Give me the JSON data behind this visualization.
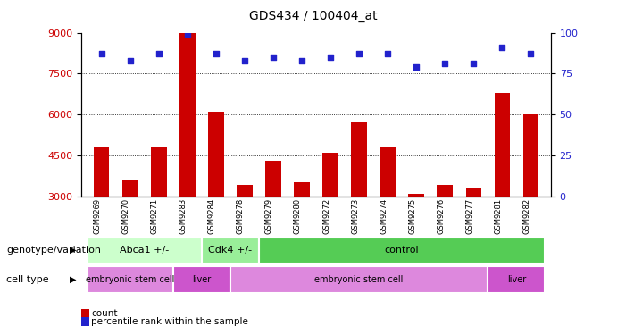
{
  "title": "GDS434 / 100404_at",
  "samples": [
    "GSM9269",
    "GSM9270",
    "GSM9271",
    "GSM9283",
    "GSM9284",
    "GSM9278",
    "GSM9279",
    "GSM9280",
    "GSM9272",
    "GSM9273",
    "GSM9274",
    "GSM9275",
    "GSM9276",
    "GSM9277",
    "GSM9281",
    "GSM9282"
  ],
  "counts": [
    4800,
    3600,
    4800,
    9000,
    6100,
    3400,
    4300,
    3500,
    4600,
    5700,
    4800,
    3100,
    3400,
    3300,
    6800,
    6000
  ],
  "percentile_ranks": [
    87,
    83,
    87,
    99,
    87,
    83,
    85,
    83,
    85,
    87,
    87,
    79,
    81,
    81,
    91,
    87
  ],
  "ylim_left": [
    3000,
    9000
  ],
  "ylim_right": [
    0,
    100
  ],
  "yticks_left": [
    3000,
    4500,
    6000,
    7500,
    9000
  ],
  "yticks_right": [
    0,
    25,
    50,
    75,
    100
  ],
  "bar_color": "#cc0000",
  "dot_color": "#2222cc",
  "genotype_groups": [
    {
      "label": "Abca1 +/-",
      "start": 0,
      "end": 4,
      "color": "#ccffcc"
    },
    {
      "label": "Cdk4 +/-",
      "start": 4,
      "end": 6,
      "color": "#99ee99"
    },
    {
      "label": "control",
      "start": 6,
      "end": 16,
      "color": "#55cc55"
    }
  ],
  "celltype_groups": [
    {
      "label": "embryonic stem cell",
      "start": 0,
      "end": 3,
      "color": "#dd88dd"
    },
    {
      "label": "liver",
      "start": 3,
      "end": 5,
      "color": "#cc55cc"
    },
    {
      "label": "embryonic stem cell",
      "start": 5,
      "end": 14,
      "color": "#dd88dd"
    },
    {
      "label": "liver",
      "start": 14,
      "end": 16,
      "color": "#cc55cc"
    }
  ],
  "genotype_label": "genotype/variation",
  "celltype_label": "cell type",
  "legend_count_label": "count",
  "legend_pct_label": "percentile rank within the sample",
  "background_color": "#ffffff",
  "figsize": [
    7.01,
    3.66
  ],
  "dpi": 100
}
